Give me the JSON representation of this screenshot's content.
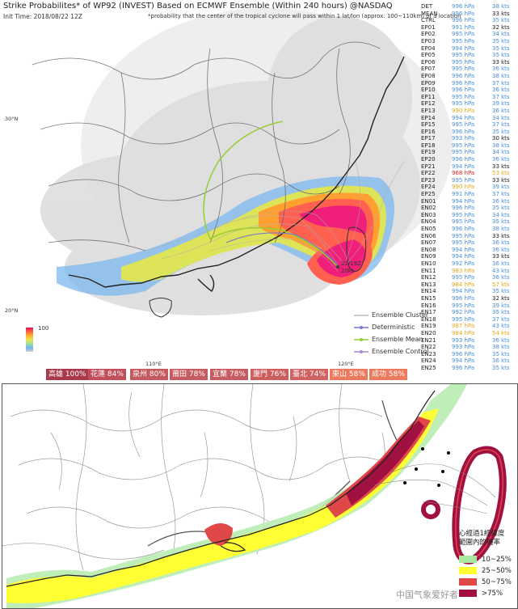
{
  "top_panel": {
    "title": "Strike Probabilites* of WP92 (INVEST) Based on ECMWF Ensemble (Within 240 hours) @NASDAQ",
    "init_time": "Init Time: 2018/08/22 12Z",
    "note": "*probability that the center of the tropical cyclone will pass within 1 lat/lon (approx. 100~110km) of a location",
    "lat_labels": [
      "30°N",
      "20°N"
    ],
    "lon_labels": [
      "110°E",
      "120°E"
    ],
    "colorbar_max": "100",
    "storm_label_1": "22/18Z",
    "storm_label_2": "20kt",
    "legend": [
      {
        "label": "Ensemble Cluster",
        "color": "#bbbbbb"
      },
      {
        "label": "Deterministic",
        "color": "#7777cc"
      },
      {
        "label": "Ensemble Mean",
        "color": "#99cc33"
      },
      {
        "label": "Ensemble Control",
        "color": "#aa88cc"
      }
    ],
    "members": [
      {
        "name": "DET",
        "pressure": "996 hPa",
        "wind": "38 kts",
        "pcolor": "#4a90d9",
        "wcolor": "#4a90d9"
      },
      {
        "name": "MEAN",
        "pressure": "996 hPa",
        "wind": "33 kts",
        "pcolor": "#4a90d9",
        "wcolor": "#222222"
      },
      {
        "name": "CTRL",
        "pressure": "996 hPa",
        "wind": "35 kts",
        "pcolor": "#4a90d9",
        "wcolor": "#4a90d9"
      },
      {
        "name": "EP01",
        "pressure": "991 hPa",
        "wind": "32 kts",
        "pcolor": "#4a90d9",
        "wcolor": "#222222"
      },
      {
        "name": "EP02",
        "pressure": "995 hPa",
        "wind": "34 kts",
        "pcolor": "#4a90d9",
        "wcolor": "#4a90d9"
      },
      {
        "name": "EP03",
        "pressure": "995 hPa",
        "wind": "35 kts",
        "pcolor": "#4a90d9",
        "wcolor": "#4a90d9"
      },
      {
        "name": "EP04",
        "pressure": "994 hPa",
        "wind": "35 kts",
        "pcolor": "#4a90d9",
        "wcolor": "#4a90d9"
      },
      {
        "name": "EP05",
        "pressure": "995 hPa",
        "wind": "35 kts",
        "pcolor": "#4a90d9",
        "wcolor": "#4a90d9"
      },
      {
        "name": "EP06",
        "pressure": "995 hPa",
        "wind": "33 kts",
        "pcolor": "#4a90d9",
        "wcolor": "#222222"
      },
      {
        "name": "EP07",
        "pressure": "995 hPa",
        "wind": "36 kts",
        "pcolor": "#4a90d9",
        "wcolor": "#4a90d9"
      },
      {
        "name": "EP08",
        "pressure": "996 hPa",
        "wind": "38 kts",
        "pcolor": "#4a90d9",
        "wcolor": "#4a90d9"
      },
      {
        "name": "EP09",
        "pressure": "996 hPa",
        "wind": "37 kts",
        "pcolor": "#4a90d9",
        "wcolor": "#4a90d9"
      },
      {
        "name": "EP10",
        "pressure": "996 hPa",
        "wind": "36 kts",
        "pcolor": "#4a90d9",
        "wcolor": "#4a90d9"
      },
      {
        "name": "EP11",
        "pressure": "995 hPa",
        "wind": "37 kts",
        "pcolor": "#4a90d9",
        "wcolor": "#4a90d9"
      },
      {
        "name": "EP12",
        "pressure": "995 hPa",
        "wind": "39 kts",
        "pcolor": "#4a90d9",
        "wcolor": "#4a90d9"
      },
      {
        "name": "EP13",
        "pressure": "990 hPa",
        "wind": "36 kts",
        "pcolor": "#e6a817",
        "wcolor": "#4a90d9"
      },
      {
        "name": "EP14",
        "pressure": "994 hPa",
        "wind": "34 kts",
        "pcolor": "#4a90d9",
        "wcolor": "#4a90d9"
      },
      {
        "name": "EP15",
        "pressure": "995 hPa",
        "wind": "37 kts",
        "pcolor": "#4a90d9",
        "wcolor": "#4a90d9"
      },
      {
        "name": "EP16",
        "pressure": "996 hPa",
        "wind": "35 kts",
        "pcolor": "#4a90d9",
        "wcolor": "#4a90d9"
      },
      {
        "name": "EP17",
        "pressure": "993 hPa",
        "wind": "30 kts",
        "pcolor": "#4a90d9",
        "wcolor": "#222222"
      },
      {
        "name": "EP18",
        "pressure": "995 hPa",
        "wind": "38 kts",
        "pcolor": "#4a90d9",
        "wcolor": "#4a90d9"
      },
      {
        "name": "EP19",
        "pressure": "995 hPa",
        "wind": "34 kts",
        "pcolor": "#4a90d9",
        "wcolor": "#4a90d9"
      },
      {
        "name": "EP20",
        "pressure": "996 hPa",
        "wind": "36 kts",
        "pcolor": "#4a90d9",
        "wcolor": "#4a90d9"
      },
      {
        "name": "EP21",
        "pressure": "994 hPa",
        "wind": "33 kts",
        "pcolor": "#4a90d9",
        "wcolor": "#222222"
      },
      {
        "name": "EP22",
        "pressure": "968 hPa",
        "wind": "53 kts",
        "pcolor": "#d9262f",
        "wcolor": "#e6a817"
      },
      {
        "name": "EP23",
        "pressure": "995 hPa",
        "wind": "33 kts",
        "pcolor": "#4a90d9",
        "wcolor": "#222222"
      },
      {
        "name": "EP24",
        "pressure": "990 hPa",
        "wind": "39 kts",
        "pcolor": "#e6a817",
        "wcolor": "#4a90d9"
      },
      {
        "name": "EP25",
        "pressure": "991 hPa",
        "wind": "37 kts",
        "pcolor": "#4a90d9",
        "wcolor": "#4a90d9"
      },
      {
        "name": "EN01",
        "pressure": "994 hPa",
        "wind": "36 kts",
        "pcolor": "#4a90d9",
        "wcolor": "#4a90d9"
      },
      {
        "name": "EN02",
        "pressure": "996 hPa",
        "wind": "35 kts",
        "pcolor": "#4a90d9",
        "wcolor": "#4a90d9"
      },
      {
        "name": "EN03",
        "pressure": "995 hPa",
        "wind": "34 kts",
        "pcolor": "#4a90d9",
        "wcolor": "#4a90d9"
      },
      {
        "name": "EN04",
        "pressure": "995 hPa",
        "wind": "35 kts",
        "pcolor": "#4a90d9",
        "wcolor": "#4a90d9"
      },
      {
        "name": "EN05",
        "pressure": "996 hPa",
        "wind": "38 kts",
        "pcolor": "#4a90d9",
        "wcolor": "#4a90d9"
      },
      {
        "name": "EN06",
        "pressure": "995 hPa",
        "wind": "33 kts",
        "pcolor": "#4a90d9",
        "wcolor": "#222222"
      },
      {
        "name": "EN07",
        "pressure": "995 hPa",
        "wind": "36 kts",
        "pcolor": "#4a90d9",
        "wcolor": "#4a90d9"
      },
      {
        "name": "EN08",
        "pressure": "994 hPa",
        "wind": "36 kts",
        "pcolor": "#4a90d9",
        "wcolor": "#4a90d9"
      },
      {
        "name": "EN09",
        "pressure": "994 hPa",
        "wind": "33 kts",
        "pcolor": "#4a90d9",
        "wcolor": "#222222"
      },
      {
        "name": "EN10",
        "pressure": "992 hPa",
        "wind": "36 kts",
        "pcolor": "#4a90d9",
        "wcolor": "#4a90d9"
      },
      {
        "name": "EN11",
        "pressure": "983 hPa",
        "wind": "43 kts",
        "pcolor": "#e6a817",
        "wcolor": "#4a90d9"
      },
      {
        "name": "EN12",
        "pressure": "995 hPa",
        "wind": "36 kts",
        "pcolor": "#4a90d9",
        "wcolor": "#4a90d9"
      },
      {
        "name": "EN13",
        "pressure": "984 hPa",
        "wind": "57 kts",
        "pcolor": "#e6a817",
        "wcolor": "#e6a817"
      },
      {
        "name": "EN14",
        "pressure": "994 hPa",
        "wind": "35 kts",
        "pcolor": "#4a90d9",
        "wcolor": "#4a90d9"
      },
      {
        "name": "EN15",
        "pressure": "996 hPa",
        "wind": "32 kts",
        "pcolor": "#4a90d9",
        "wcolor": "#222222"
      },
      {
        "name": "EN16",
        "pressure": "995 hPa",
        "wind": "39 kts",
        "pcolor": "#4a90d9",
        "wcolor": "#4a90d9"
      },
      {
        "name": "EN17",
        "pressure": "992 hPa",
        "wind": "35 kts",
        "pcolor": "#4a90d9",
        "wcolor": "#4a90d9"
      },
      {
        "name": "EN18",
        "pressure": "995 hPa",
        "wind": "37 kts",
        "pcolor": "#4a90d9",
        "wcolor": "#4a90d9"
      },
      {
        "name": "EN19",
        "pressure": "987 hPa",
        "wind": "43 kts",
        "pcolor": "#e6a817",
        "wcolor": "#4a90d9"
      },
      {
        "name": "EN20",
        "pressure": "984 hPa",
        "wind": "54 kts",
        "pcolor": "#e6a817",
        "wcolor": "#e6a817"
      },
      {
        "name": "EN21",
        "pressure": "993 hPa",
        "wind": "36 kts",
        "pcolor": "#4a90d9",
        "wcolor": "#4a90d9"
      },
      {
        "name": "EN22",
        "pressure": "993 hPa",
        "wind": "38 kts",
        "pcolor": "#4a90d9",
        "wcolor": "#4a90d9"
      },
      {
        "name": "EN23",
        "pressure": "996 hPa",
        "wind": "35 kts",
        "pcolor": "#4a90d9",
        "wcolor": "#4a90d9"
      },
      {
        "name": "EN24",
        "pressure": "994 hPa",
        "wind": "36 kts",
        "pcolor": "#4a90d9",
        "wcolor": "#4a90d9"
      },
      {
        "name": "EN25",
        "pressure": "996 hPa",
        "wind": "35 kts",
        "pcolor": "#4a90d9",
        "wcolor": "#4a90d9"
      }
    ],
    "city_probabilities": [
      {
        "label": "高雄 100%",
        "color": "#a83a4c"
      },
      {
        "label": "花蓮 84%",
        "color": "#c04f5a"
      },
      {
        "label": "泉州 80%",
        "color": "#c45a60"
      },
      {
        "label": "莆田 78%",
        "color": "#c65c62"
      },
      {
        "label": "宜蘭 78%",
        "color": "#c65c62"
      },
      {
        "label": "廈門 76%",
        "color": "#cd5e5e"
      },
      {
        "label": "臺北 74%",
        "color": "#cf6262"
      },
      {
        "label": "東山 58%",
        "color": "#ec7a5e"
      },
      {
        "label": "成功 58%",
        "color": "#ec7a5e"
      }
    ]
  },
  "bottom_panel": {
    "legend_title_line1": "心經過1經緯度",
    "legend_title_line2": "範圍內的機率",
    "legend": [
      {
        "label": "10~25%",
        "color": "#a8e8a0"
      },
      {
        "label": "25~50%",
        "color": "#ffff33"
      },
      {
        "label": "50~75%",
        "color": "#e04848"
      },
      {
        "label": ">75%",
        "color": "#a01040"
      }
    ],
    "watermark": "中国气象爱好者"
  }
}
